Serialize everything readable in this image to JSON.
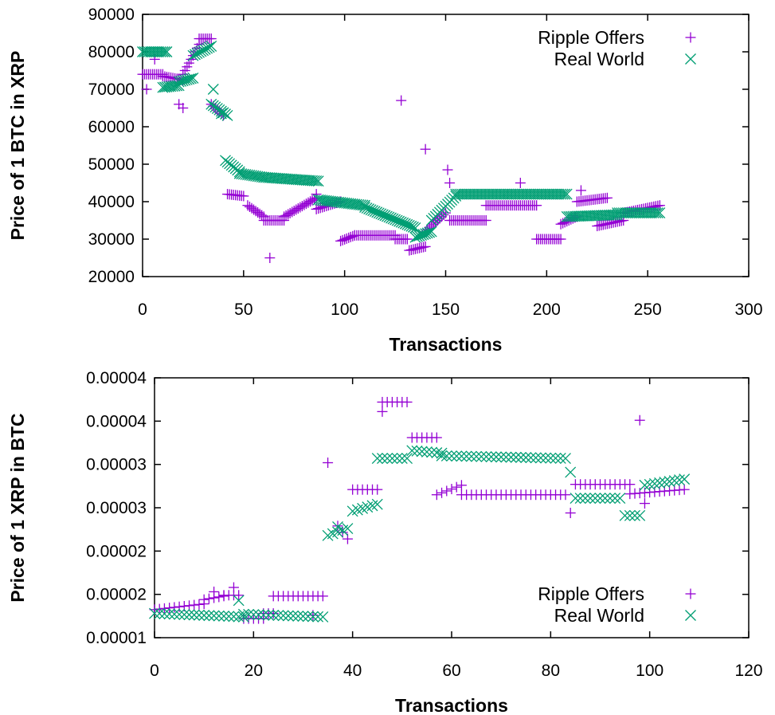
{
  "colors": {
    "ripple": "#9400D3",
    "real": "#009E73"
  },
  "chart_data": [
    {
      "type": "scatter",
      "xlabel": "Transactions",
      "ylabel": "Price of 1 BTC in XRP",
      "xlim": [
        0,
        300
      ],
      "ylim": [
        20000,
        90000
      ],
      "x_ticks": [
        "0",
        "50",
        "100",
        "150",
        "200",
        "250",
        "300"
      ],
      "y_ticks": [
        "20000",
        "30000",
        "40000",
        "50000",
        "60000",
        "70000",
        "80000",
        "90000"
      ],
      "legend_position": "top-right",
      "series": [
        {
          "name": "Ripple Offers",
          "marker": "plus",
          "segments": [
            {
              "x0": 0,
              "x1": 10,
              "y0": 74000,
              "y1": 74000
            },
            {
              "x0": 10,
              "x1": 20,
              "y0": 73500,
              "y1": 72500
            },
            {
              "x0": 20,
              "x1": 28,
              "y0": 74000,
              "y1": 82000
            },
            {
              "x0": 28,
              "x1": 34,
              "y0": 83500,
              "y1": 83500
            },
            {
              "x0": 34,
              "x1": 40,
              "y0": 66000,
              "y1": 63000
            },
            {
              "x0": 42,
              "x1": 50,
              "y0": 42000,
              "y1": 41500
            },
            {
              "x0": 52,
              "x1": 60,
              "y0": 39000,
              "y1": 36000
            },
            {
              "x0": 60,
              "x1": 70,
              "y0": 35000,
              "y1": 35000
            },
            {
              "x0": 70,
              "x1": 86,
              "y0": 36000,
              "y1": 41000
            },
            {
              "x0": 86,
              "x1": 98,
              "y0": 38000,
              "y1": 40000
            },
            {
              "x0": 98,
              "x1": 105,
              "y0": 29500,
              "y1": 31000
            },
            {
              "x0": 105,
              "x1": 125,
              "y0": 31000,
              "y1": 31000
            },
            {
              "x0": 125,
              "x1": 131,
              "y0": 30000,
              "y1": 30000
            },
            {
              "x0": 132,
              "x1": 140,
              "y0": 27000,
              "y1": 28000
            },
            {
              "x0": 140,
              "x1": 150,
              "y0": 32000,
              "y1": 37000
            },
            {
              "x0": 152,
              "x1": 170,
              "y0": 35000,
              "y1": 35000
            },
            {
              "x0": 170,
              "x1": 195,
              "y0": 39000,
              "y1": 39000
            },
            {
              "x0": 195,
              "x1": 207,
              "y0": 30000,
              "y1": 30000
            },
            {
              "x0": 207,
              "x1": 215,
              "y0": 34000,
              "y1": 36000
            },
            {
              "x0": 215,
              "x1": 230,
              "y0": 40000,
              "y1": 41000
            },
            {
              "x0": 225,
              "x1": 238,
              "y0": 33500,
              "y1": 35000
            },
            {
              "x0": 238,
              "x1": 256,
              "y0": 37000,
              "y1": 39000
            }
          ],
          "points": [
            {
              "x": 2,
              "y": 70000
            },
            {
              "x": 6,
              "y": 78000
            },
            {
              "x": 18,
              "y": 66000
            },
            {
              "x": 20,
              "y": 65000
            },
            {
              "x": 63,
              "y": 25000
            },
            {
              "x": 128,
              "y": 67000
            },
            {
              "x": 140,
              "y": 54000
            },
            {
              "x": 151,
              "y": 48500
            },
            {
              "x": 152,
              "y": 45000
            },
            {
              "x": 187,
              "y": 45000
            },
            {
              "x": 217,
              "y": 43000
            },
            {
              "x": 86,
              "y": 42000
            }
          ]
        },
        {
          "name": "Real World",
          "marker": "cross",
          "segments": [
            {
              "x0": 0,
              "x1": 12,
              "y0": 80000,
              "y1": 80000
            },
            {
              "x0": 10,
              "x1": 18,
              "y0": 70500,
              "y1": 71000
            },
            {
              "x0": 18,
              "x1": 25,
              "y0": 72000,
              "y1": 73000
            },
            {
              "x0": 25,
              "x1": 34,
              "y0": 79000,
              "y1": 81500
            },
            {
              "x0": 34,
              "x1": 42,
              "y0": 66000,
              "y1": 63000
            },
            {
              "x0": 41,
              "x1": 48,
              "y0": 51000,
              "y1": 48000
            },
            {
              "x0": 48,
              "x1": 60,
              "y0": 47500,
              "y1": 46500
            },
            {
              "x0": 60,
              "x1": 87,
              "y0": 46500,
              "y1": 45500
            },
            {
              "x0": 87,
              "x1": 110,
              "y0": 40500,
              "y1": 39000
            },
            {
              "x0": 110,
              "x1": 135,
              "y0": 38500,
              "y1": 33000
            },
            {
              "x0": 135,
              "x1": 143,
              "y0": 30500,
              "y1": 32000
            },
            {
              "x0": 143,
              "x1": 155,
              "y0": 35000,
              "y1": 41500
            },
            {
              "x0": 155,
              "x1": 210,
              "y0": 42000,
              "y1": 42000
            },
            {
              "x0": 210,
              "x1": 235,
              "y0": 36000,
              "y1": 36500
            },
            {
              "x0": 235,
              "x1": 256,
              "y0": 37000,
              "y1": 37000
            }
          ],
          "points": [
            {
              "x": 35,
              "y": 70000
            },
            {
              "x": 39,
              "y": 63500
            }
          ]
        }
      ]
    },
    {
      "type": "scatter",
      "xlabel": "Transactions",
      "ylabel": "Price of 1 XRP in BTC",
      "xlim": [
        0,
        120
      ],
      "ylim": [
        1e-05,
        4e-05
      ],
      "x_ticks": [
        "0",
        "20",
        "40",
        "60",
        "80",
        "100",
        "120"
      ],
      "y_ticks": [
        "0.00001",
        "0.00002",
        "0.00002",
        "0.00003",
        "0.00003",
        "0.00004",
        "0.00004"
      ],
      "legend_position": "bottom-right",
      "series": [
        {
          "name": "Ripple Offers",
          "marker": "plus",
          "segments": [
            {
              "x0": 0,
              "x1": 10,
              "y0": 1.324e-05,
              "y1": 1.39e-05
            },
            {
              "x0": 10,
              "x1": 14,
              "y0": 1.44e-05,
              "y1": 1.48e-05
            },
            {
              "x0": 14,
              "x1": 17,
              "y0": 1.49e-05,
              "y1": 1.49e-05
            },
            {
              "x0": 18,
              "x1": 22,
              "y0": 1.22e-05,
              "y1": 1.22e-05
            },
            {
              "x0": 22,
              "x1": 24,
              "y0": 1.28e-05,
              "y1": 1.28e-05
            },
            {
              "x0": 24,
              "x1": 34,
              "y0": 1.48e-05,
              "y1": 1.48e-05
            },
            {
              "x0": 37,
              "x1": 39,
              "y0": 2.29e-05,
              "y1": 2.14e-05
            },
            {
              "x0": 40,
              "x1": 45,
              "y0": 2.71e-05,
              "y1": 2.71e-05
            },
            {
              "x0": 46,
              "x1": 51,
              "y0": 3.72e-05,
              "y1": 3.72e-05
            },
            {
              "x0": 52,
              "x1": 57,
              "y0": 3.31e-05,
              "y1": 3.31e-05
            },
            {
              "x0": 57,
              "x1": 62,
              "y0": 2.65e-05,
              "y1": 2.76e-05
            },
            {
              "x0": 62,
              "x1": 83,
              "y0": 2.65e-05,
              "y1": 2.65e-05
            },
            {
              "x0": 85,
              "x1": 96,
              "y0": 2.77e-05,
              "y1": 2.77e-05
            },
            {
              "x0": 96,
              "x1": 107,
              "y0": 2.66e-05,
              "y1": 2.71e-05
            }
          ],
          "points": [
            {
              "x": 12,
              "y": 1.53e-05
            },
            {
              "x": 16,
              "y": 1.58e-05
            },
            {
              "x": 35,
              "y": 3.02e-05
            },
            {
              "x": 46,
              "y": 3.61e-05
            },
            {
              "x": 84,
              "y": 2.44e-05
            },
            {
              "x": 98,
              "y": 3.51e-05
            },
            {
              "x": 99,
              "y": 2.55e-05
            },
            {
              "x": 32,
              "y": 1.26e-05
            }
          ]
        },
        {
          "name": "Real World",
          "marker": "cross",
          "segments": [
            {
              "x0": 0,
              "x1": 18,
              "y0": 1.28e-05,
              "y1": 1.24e-05
            },
            {
              "x0": 18,
              "x1": 34,
              "y0": 1.27e-05,
              "y1": 1.24e-05
            },
            {
              "x0": 35,
              "x1": 39,
              "y0": 2.18e-05,
              "y1": 2.26e-05
            },
            {
              "x0": 40,
              "x1": 45,
              "y0": 2.46e-05,
              "y1": 2.54e-05
            },
            {
              "x0": 45,
              "x1": 51,
              "y0": 3.07e-05,
              "y1": 3.07e-05
            },
            {
              "x0": 52,
              "x1": 58,
              "y0": 3.16e-05,
              "y1": 3.13e-05
            },
            {
              "x0": 58,
              "x1": 83,
              "y0": 3.1e-05,
              "y1": 3.07e-05
            },
            {
              "x0": 85,
              "x1": 94,
              "y0": 2.61e-05,
              "y1": 2.61e-05
            },
            {
              "x0": 95,
              "x1": 98,
              "y0": 2.41e-05,
              "y1": 2.41e-05
            },
            {
              "x0": 99,
              "x1": 107,
              "y0": 2.76e-05,
              "y1": 2.83e-05
            }
          ],
          "points": [
            {
              "x": 17,
              "y": 1.43e-05
            },
            {
              "x": 37,
              "y": 2.28e-05
            },
            {
              "x": 84,
              "y": 2.91e-05
            }
          ]
        }
      ]
    }
  ]
}
